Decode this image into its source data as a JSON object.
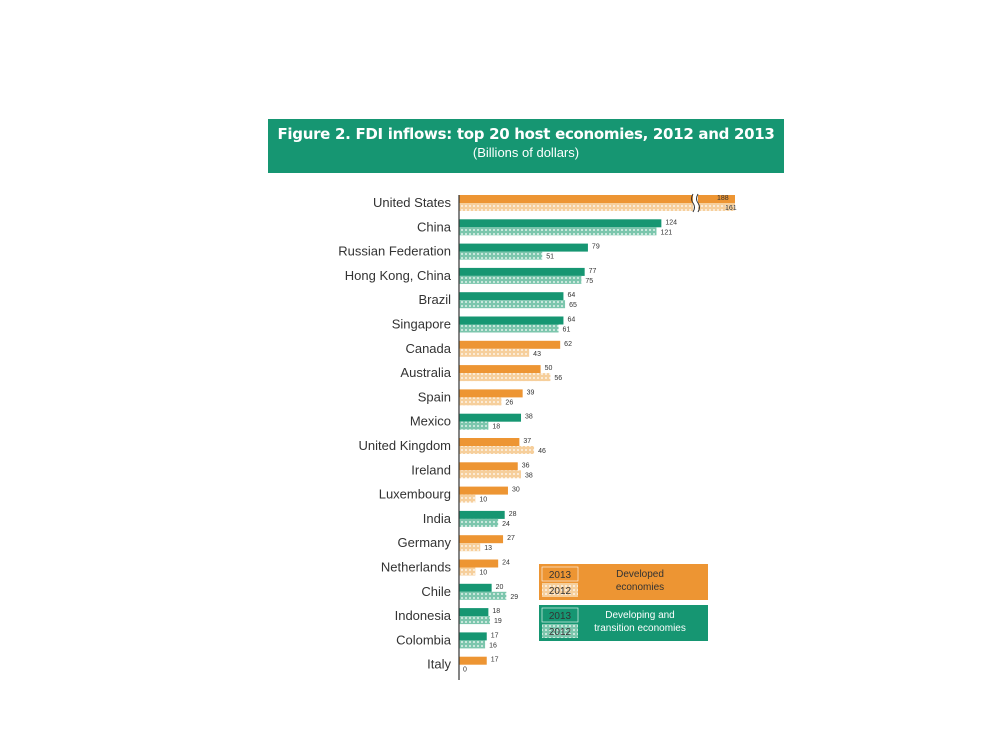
{
  "chart_data": {
    "type": "bar",
    "orientation": "horizontal",
    "title": "Figure 2. FDI inflows: top 20 host economies, 2012 and 2013",
    "subtitle": "(Billions of dollars)",
    "categories": [
      "United States",
      "China",
      "Russian Federation",
      "Hong Kong, China",
      "Brazil",
      "Singapore",
      "Canada",
      "Australia",
      "Spain",
      "Mexico",
      "United Kingdom",
      "Ireland",
      "Luxembourg",
      "India",
      "Germany",
      "Netherlands",
      "Chile",
      "Indonesia",
      "Colombia",
      "Italy"
    ],
    "group": [
      "developed",
      "developing",
      "developing",
      "developing",
      "developing",
      "developing",
      "developed",
      "developed",
      "developed",
      "developing",
      "developed",
      "developed",
      "developed",
      "developing",
      "developed",
      "developed",
      "developing",
      "developing",
      "developing",
      "developed"
    ],
    "series": [
      {
        "name": "2013",
        "values": [
          188,
          124,
          79,
          77,
          64,
          64,
          62,
          50,
          39,
          38,
          37,
          36,
          30,
          28,
          27,
          24,
          20,
          18,
          17,
          17
        ]
      },
      {
        "name": "2012",
        "values": [
          161,
          121,
          51,
          75,
          65,
          61,
          43,
          56,
          26,
          18,
          46,
          38,
          10,
          24,
          13,
          10,
          29,
          19,
          16,
          0
        ]
      }
    ],
    "value_labels_2013": [
      "188",
      "124",
      "79",
      "77",
      "64",
      "64",
      "62",
      "50",
      "39",
      "38",
      "37",
      "36",
      "30",
      "28",
      "27",
      "24",
      "20",
      "18",
      "17",
      "17"
    ],
    "value_labels_2012": [
      "161",
      "121",
      "51",
      "75",
      "65",
      "61",
      "43",
      "56",
      "26",
      "18",
      "46",
      "38",
      "10",
      "24",
      "13",
      "10",
      "29",
      "19",
      "16",
      "0"
    ],
    "axis_break_after_value": 125,
    "legend": {
      "placement": "bottom-right",
      "groups": [
        {
          "label": "Developed economies",
          "color": "#ed9533",
          "year_solid": "2013",
          "year_hatched": "2012"
        },
        {
          "label": "Developing and transition economies",
          "color": "#169672",
          "year_solid": "2013",
          "year_hatched": "2012"
        }
      ]
    },
    "colors": {
      "developed": "#ed9533",
      "developing": "#169672",
      "title_bg": "#169672"
    }
  }
}
